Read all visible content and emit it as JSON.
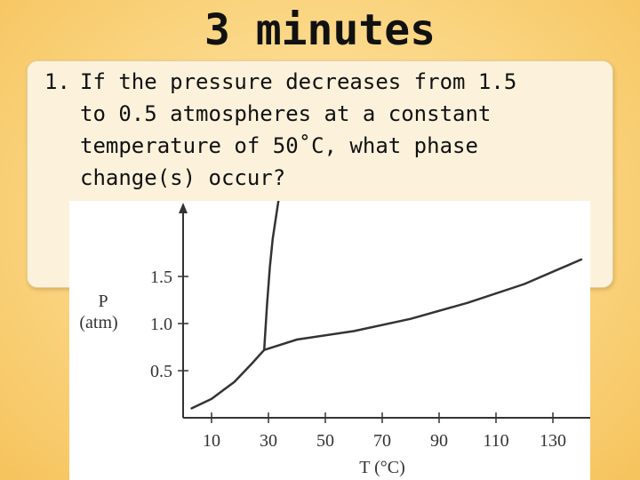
{
  "slide": {
    "title": "3 minutes",
    "question": {
      "number": "1.",
      "lines": [
        "If the pressure decreases from 1.5",
        "to 0.5 atmospheres at a constant",
        "temperature of 50˚C, what phase",
        "change(s) occur?"
      ]
    }
  },
  "chart_data": {
    "type": "line",
    "title": "",
    "xlabel": "T (°C)",
    "ylabel": "P",
    "ylabel_unit": "(atm)",
    "x_ticks": [
      10,
      30,
      50,
      70,
      90,
      110,
      130
    ],
    "x_tick_labels": [
      "10",
      "30",
      "50",
      "70",
      "90",
      "110",
      "130"
    ],
    "y_ticks": [
      0.5,
      1.0,
      1.5
    ],
    "y_tick_labels": [
      "0.5",
      "1.0",
      "1.5"
    ],
    "xlim": [
      0,
      146
    ],
    "ylim": [
      0,
      2.3
    ],
    "grid": false,
    "series": [
      {
        "x": [
          3,
          10,
          18,
          24,
          28.5
        ],
        "y": [
          0.1,
          0.2,
          0.38,
          0.57,
          0.72
        ]
      },
      {
        "x": [
          28.5,
          29.5,
          30.5,
          31.5,
          32.5,
          33.5
        ],
        "y": [
          0.72,
          1.2,
          1.6,
          1.9,
          2.1,
          2.3
        ]
      },
      {
        "x": [
          28.5,
          40,
          60,
          80,
          100,
          120,
          140
        ],
        "y": [
          0.72,
          0.83,
          0.92,
          1.05,
          1.22,
          1.42,
          1.68
        ]
      }
    ],
    "colors": {
      "curve": "#333333",
      "axis": "#333333",
      "background": "#ffffff"
    }
  }
}
